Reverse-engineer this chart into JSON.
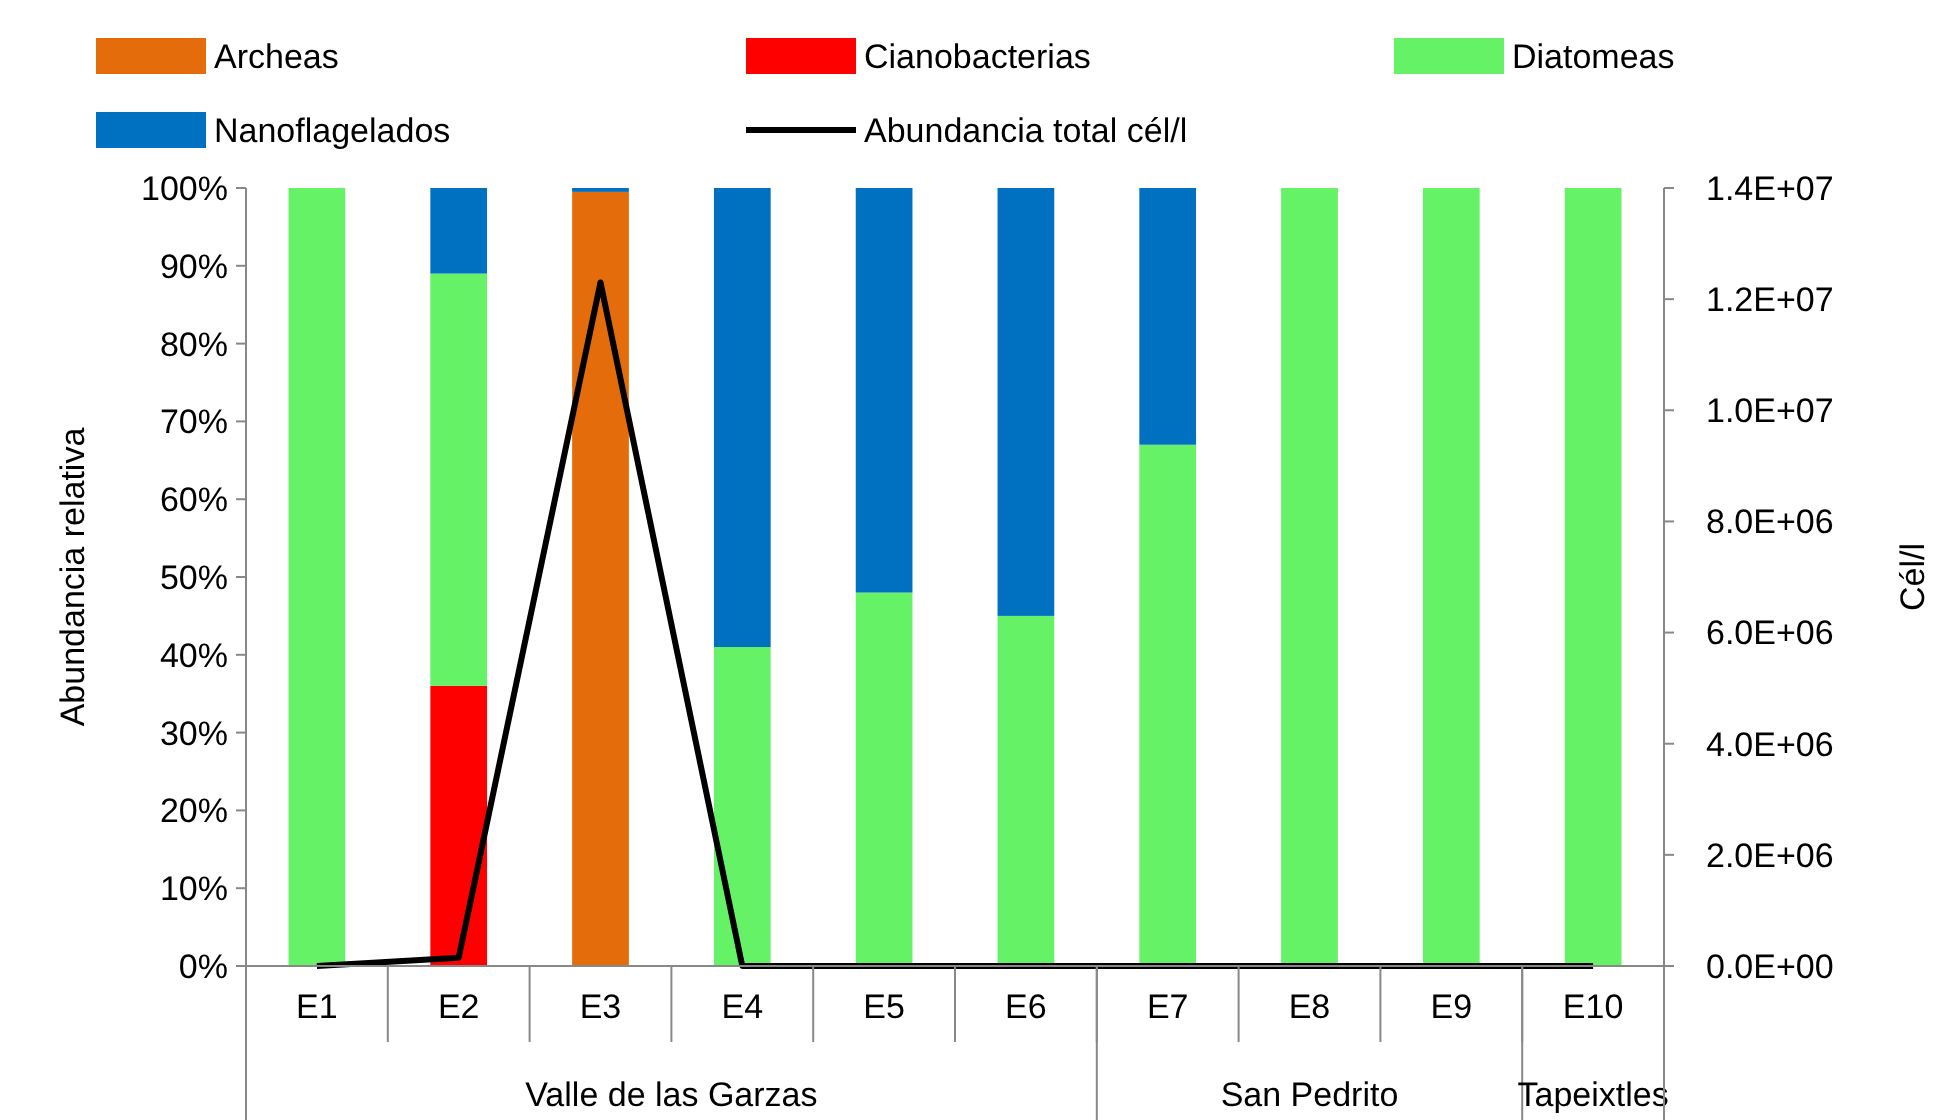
{
  "chart_data": {
    "type": "bar",
    "stacked": true,
    "legend": "top",
    "ylabel": "Abundancia relativa",
    "y2label": "Cél/l",
    "categories": [
      "E1",
      "E2",
      "E3",
      "E4",
      "E5",
      "E6",
      "E7",
      "E8",
      "E9",
      "E10"
    ],
    "series": [
      {
        "name": "Archeas",
        "color": "#e46c0a",
        "values": [
          0,
          0,
          99.5,
          0,
          0,
          0,
          0,
          0,
          0,
          0
        ]
      },
      {
        "name": "Cianobacterias",
        "color": "#ff0000",
        "values": [
          0,
          36,
          0,
          0,
          0,
          0,
          0,
          0,
          0,
          0
        ]
      },
      {
        "name": "Diatomeas",
        "color": "#66f266",
        "values": [
          100,
          53,
          0,
          41,
          48,
          45,
          67,
          100,
          100,
          100
        ]
      },
      {
        "name": "Nanoflagelados",
        "color": "#0070c0",
        "values": [
          0,
          11,
          0.5,
          59,
          52,
          55,
          33,
          0,
          0,
          0
        ]
      },
      {
        "name": "Abundancia total cél/l",
        "type": "line",
        "axis": "y2",
        "color": "#000000",
        "values": [
          0,
          150000,
          12300000,
          0,
          0,
          0,
          0,
          0,
          0,
          0
        ]
      }
    ],
    "ylim": [
      0,
      100
    ],
    "yticks": [
      {
        "value": 0,
        "label": "0%"
      },
      {
        "value": 10,
        "label": "10%"
      },
      {
        "value": 20,
        "label": "20%"
      },
      {
        "value": 30,
        "label": "30%"
      },
      {
        "value": 40,
        "label": "40%"
      },
      {
        "value": 50,
        "label": "50%"
      },
      {
        "value": 60,
        "label": "60%"
      },
      {
        "value": 70,
        "label": "70%"
      },
      {
        "value": 80,
        "label": "80%"
      },
      {
        "value": 90,
        "label": "90%"
      },
      {
        "value": 100,
        "label": "100%"
      }
    ],
    "y2lim": [
      0,
      14000000
    ],
    "y2ticks": [
      {
        "value": 0,
        "label": "0.0E+00"
      },
      {
        "value": 2000000,
        "label": "2.0E+06"
      },
      {
        "value": 4000000,
        "label": "4.0E+06"
      },
      {
        "value": 6000000,
        "label": "6.0E+06"
      },
      {
        "value": 8000000,
        "label": "8.0E+06"
      },
      {
        "value": 10000000,
        "label": "1.0E+07"
      },
      {
        "value": 12000000,
        "label": "1.2E+07"
      },
      {
        "value": 14000000,
        "label": "1.4E+07"
      }
    ],
    "annotations": [
      "Valle de las Garzas",
      "San Pedrito",
      "Tapeixtles"
    ]
  }
}
